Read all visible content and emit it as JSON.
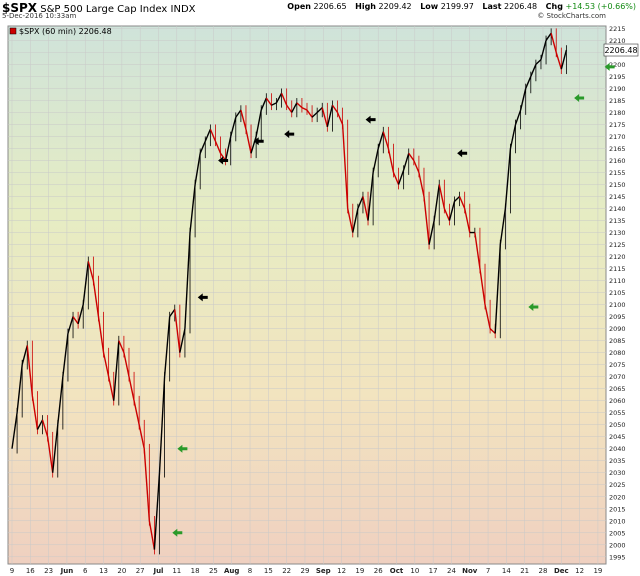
{
  "header": {
    "symbol": "$SPX",
    "name": "S&P 500 Large Cap Index",
    "exchange": "INDX",
    "date": "5-Dec-2016 10:33am",
    "brand": "© StockCharts.com",
    "open_label": "Open",
    "open": "2206.65",
    "high_label": "High",
    "high": "2209.42",
    "low_label": "Low",
    "low": "2199.97",
    "last_label": "Last",
    "last": "2206.48",
    "chg_label": "Chg",
    "chg": "+14.53",
    "chg_pct": "(+0.66%)",
    "chg_color": "#138a13"
  },
  "legend": {
    "text": "$SPX (60 min) 2206.48"
  },
  "last_price_tag": "2206.48",
  "chart_data": {
    "type": "line",
    "title": "$SPX S&P 500 Large Cap Index INDX",
    "interval": "60 min",
    "ylim": [
      1992,
      2216
    ],
    "y_tick_step": 5,
    "x_tick_labels": [
      "9",
      "16",
      "23",
      "Jun",
      "6",
      "13",
      "20",
      "27",
      "Jul",
      "11",
      "18",
      "25",
      "Aug",
      "8",
      "15",
      "22",
      "29",
      "Sep",
      "12",
      "19",
      "26",
      "Oct",
      "10",
      "17",
      "24",
      "Nov",
      "7",
      "14",
      "21",
      "28",
      "Dec",
      "12",
      "19"
    ],
    "grid": true,
    "up_color": "#000000",
    "down_color": "#cc0000",
    "background_gradient": [
      "#cfe3da",
      "#e6ecc3",
      "#f2e4bf",
      "#efd0c0"
    ],
    "series": [
      {
        "name": "$SPX (60 min)",
        "values": [
          [
            0,
            2040
          ],
          [
            1,
            2055
          ],
          [
            2,
            2075
          ],
          [
            3,
            2083
          ],
          [
            4,
            2062
          ],
          [
            5,
            2048
          ],
          [
            6,
            2052
          ],
          [
            7,
            2045
          ],
          [
            8,
            2030
          ],
          [
            9,
            2050
          ],
          [
            10,
            2070
          ],
          [
            11,
            2088
          ],
          [
            12,
            2095
          ],
          [
            13,
            2092
          ],
          [
            14,
            2100
          ],
          [
            15,
            2118
          ],
          [
            16,
            2110
          ],
          [
            17,
            2095
          ],
          [
            18,
            2080
          ],
          [
            19,
            2070
          ],
          [
            20,
            2060
          ],
          [
            21,
            2085
          ],
          [
            22,
            2080
          ],
          [
            23,
            2070
          ],
          [
            24,
            2060
          ],
          [
            25,
            2050
          ],
          [
            26,
            2040
          ],
          [
            27,
            2010
          ],
          [
            28,
            1998
          ],
          [
            29,
            2030
          ],
          [
            30,
            2070
          ],
          [
            31,
            2095
          ],
          [
            32,
            2098
          ],
          [
            33,
            2080
          ],
          [
            34,
            2090
          ],
          [
            35,
            2130
          ],
          [
            36,
            2150
          ],
          [
            37,
            2163
          ],
          [
            38,
            2168
          ],
          [
            39,
            2173
          ],
          [
            40,
            2168
          ],
          [
            41,
            2163
          ],
          [
            42,
            2160
          ],
          [
            43,
            2170
          ],
          [
            44,
            2178
          ],
          [
            45,
            2181
          ],
          [
            46,
            2173
          ],
          [
            47,
            2163
          ],
          [
            48,
            2170
          ],
          [
            49,
            2181
          ],
          [
            50,
            2186
          ],
          [
            51,
            2183
          ],
          [
            52,
            2184
          ],
          [
            53,
            2188
          ],
          [
            54,
            2183
          ],
          [
            55,
            2180
          ],
          [
            56,
            2184
          ],
          [
            57,
            2182
          ],
          [
            58,
            2181
          ],
          [
            59,
            2178
          ],
          [
            60,
            2180
          ],
          [
            61,
            2182
          ],
          [
            62,
            2174
          ],
          [
            63,
            2183
          ],
          [
            64,
            2180
          ],
          [
            65,
            2175
          ],
          [
            66,
            2140
          ],
          [
            67,
            2130
          ],
          [
            68,
            2140
          ],
          [
            69,
            2145
          ],
          [
            70,
            2135
          ],
          [
            71,
            2155
          ],
          [
            72,
            2165
          ],
          [
            73,
            2172
          ],
          [
            74,
            2165
          ],
          [
            75,
            2155
          ],
          [
            76,
            2150
          ],
          [
            77,
            2156
          ],
          [
            78,
            2163
          ],
          [
            79,
            2160
          ],
          [
            80,
            2155
          ],
          [
            81,
            2145
          ],
          [
            82,
            2125
          ],
          [
            83,
            2135
          ],
          [
            84,
            2150
          ],
          [
            85,
            2140
          ],
          [
            86,
            2135
          ],
          [
            87,
            2143
          ],
          [
            88,
            2145
          ],
          [
            89,
            2140
          ],
          [
            90,
            2130
          ],
          [
            91,
            2130
          ],
          [
            92,
            2115
          ],
          [
            93,
            2100
          ],
          [
            94,
            2090
          ],
          [
            95,
            2088
          ],
          [
            96,
            2125
          ],
          [
            97,
            2140
          ],
          [
            98,
            2165
          ],
          [
            99,
            2175
          ],
          [
            100,
            2181
          ],
          [
            101,
            2190
          ],
          [
            102,
            2195
          ],
          [
            103,
            2200
          ],
          [
            104,
            2202
          ],
          [
            105,
            2210
          ],
          [
            106,
            2213
          ],
          [
            107,
            2205
          ],
          [
            108,
            2198
          ],
          [
            109,
            2206
          ]
        ]
      }
    ],
    "annotations": [
      {
        "label": "black-arrow",
        "dir": "left",
        "x": 37.5,
        "y": 2103
      },
      {
        "label": "black-arrow",
        "dir": "left",
        "x": 41.5,
        "y": 2160
      },
      {
        "label": "black-arrow",
        "dir": "left",
        "x": 48.5,
        "y": 2168
      },
      {
        "label": "black-arrow",
        "dir": "left",
        "x": 54.5,
        "y": 2171
      },
      {
        "label": "black-arrow",
        "dir": "left",
        "x": 70.5,
        "y": 2177
      },
      {
        "label": "black-arrow",
        "dir": "left",
        "x": 88.5,
        "y": 2163
      },
      {
        "label": "green-arrow",
        "dir": "left",
        "x": 33.5,
        "y": 2040
      },
      {
        "label": "green-arrow",
        "dir": "left",
        "x": 32.5,
        "y": 2005
      },
      {
        "label": "green-arrow",
        "dir": "left",
        "x": 102.5,
        "y": 2099
      },
      {
        "label": "green-arrow",
        "dir": "left",
        "x": 111.5,
        "y": 2186
      },
      {
        "label": "green-arrow",
        "dir": "left",
        "x": 117.5,
        "y": 2199
      }
    ]
  }
}
